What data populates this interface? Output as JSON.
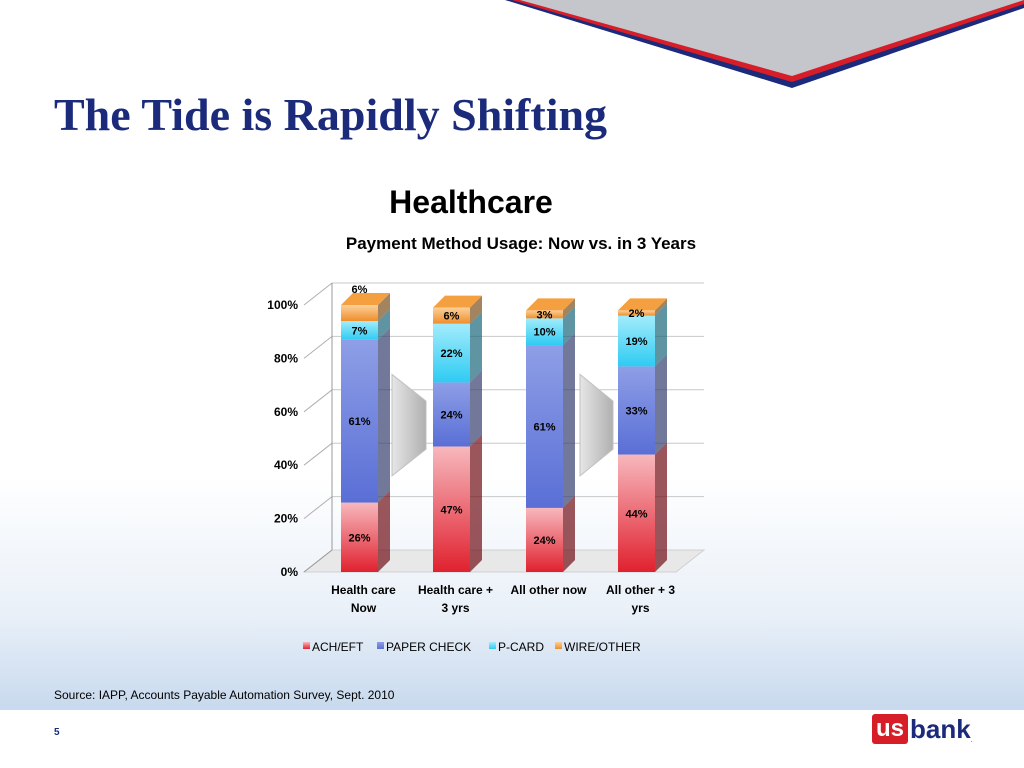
{
  "slide": {
    "title": "The Tide is Rapidly Shifting",
    "source": "Source: IAPP, Accounts Payable Automation Survey, Sept. 2010",
    "page_number": "5",
    "logo": {
      "us": "us",
      "bank": "bank",
      "mark": "."
    }
  },
  "colors": {
    "title": "#1b2a7a",
    "ach": "#e0212f",
    "paper": "#6f80dc",
    "pcard": "#39d0f5",
    "wire": "#f5a040"
  },
  "chart_data": {
    "type": "bar",
    "stacked": true,
    "title": "Healthcare",
    "subtitle": "Payment Method Usage: Now vs. in 3 Years",
    "categories": [
      "Health care Now",
      "Health care + 3 yrs",
      "All other now",
      "All other + 3 yrs"
    ],
    "category_lines": [
      [
        "Health care",
        "Now"
      ],
      [
        "Health care +",
        "3 yrs"
      ],
      [
        "All other now",
        ""
      ],
      [
        "All other + 3",
        "yrs"
      ]
    ],
    "series": [
      {
        "name": "ACH/EFT",
        "values": [
          26,
          47,
          24,
          44
        ],
        "labels": [
          "26%",
          "47%",
          "24%",
          "44%"
        ],
        "color": "#e0212f"
      },
      {
        "name": "PAPER CHECK",
        "values": [
          61,
          24,
          61,
          33
        ],
        "labels": [
          "61%",
          "24%",
          "61%",
          "33%"
        ],
        "color": "#6f80dc"
      },
      {
        "name": "P-CARD",
        "values": [
          7,
          22,
          10,
          19
        ],
        "labels": [
          "7%",
          "22%",
          "10%",
          "19%"
        ],
        "color": "#39d0f5"
      },
      {
        "name": "WIRE/OTHER",
        "values": [
          6,
          6,
          3,
          2
        ],
        "labels": [
          "6%",
          "6%",
          "3%",
          "2%"
        ],
        "color": "#f5a040"
      }
    ],
    "y_ticks": [
      "0%",
      "20%",
      "40%",
      "60%",
      "80%",
      "100%"
    ],
    "ylim": [
      0,
      100
    ],
    "grid": true,
    "legend": "bottom"
  }
}
